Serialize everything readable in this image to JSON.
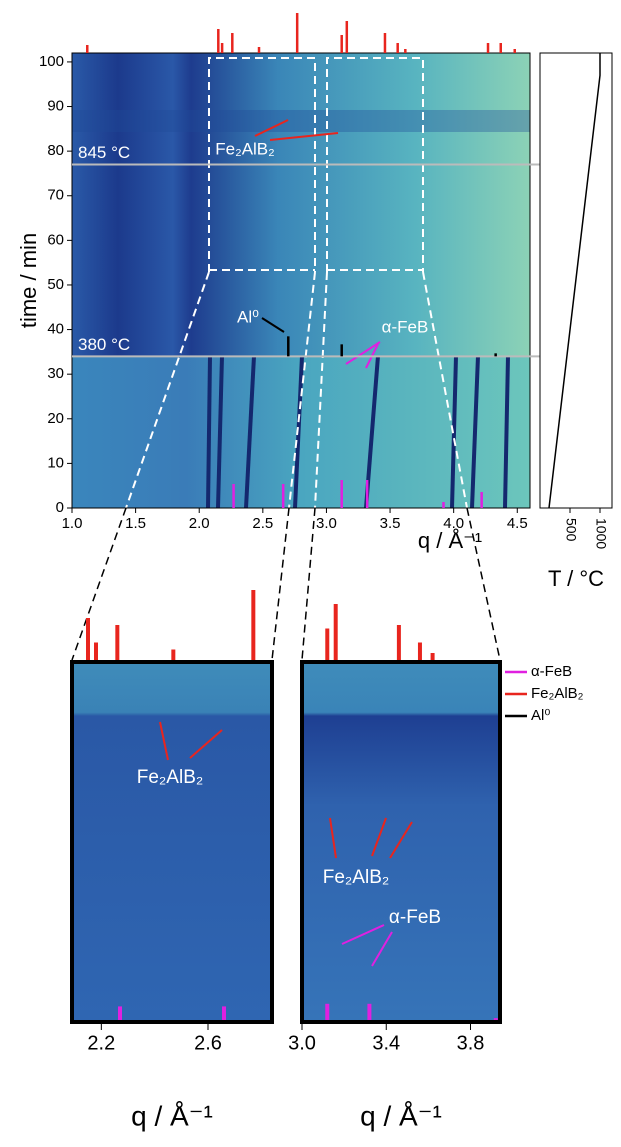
{
  "chart_data": [
    {
      "type": "heatmap",
      "ylabel": "time / min",
      "xlabel": "q / Å⁻¹",
      "xlim": [
        1.0,
        4.6
      ],
      "ylim": [
        0,
        102
      ],
      "xticks": [
        {
          "value": 1,
          "label": "1.0"
        },
        1.5,
        {
          "value": 2,
          "label": "2.0"
        },
        2.5,
        {
          "value": 3,
          "label": "3.0"
        },
        3.5,
        {
          "value": 4,
          "label": "4.0"
        },
        4.5
      ],
      "yticks": [
        0,
        10,
        20,
        30,
        40,
        50,
        60,
        70,
        80,
        90,
        100
      ],
      "hlines": [
        {
          "value": 77,
          "label": "845 °C"
        },
        {
          "value": 34,
          "label": "380 °C"
        }
      ],
      "series": [
        {
          "name": "α-FeB",
          "color": "#e020e0",
          "x": [
            2.27,
            2.66,
            3.12,
            3.32,
            3.92,
            4.22
          ],
          "values": [
            60,
            60,
            70,
            70,
            15,
            40
          ]
        },
        {
          "name": "Fe₂AlB₂",
          "color": "#e8251e",
          "x": [
            1.12,
            2.15,
            2.18,
            2.26,
            2.47,
            2.77,
            3.12,
            3.16,
            3.46,
            3.56,
            3.62,
            4.27,
            4.37,
            4.48
          ],
          "values": [
            20,
            60,
            25,
            50,
            15,
            100,
            45,
            80,
            50,
            25,
            10,
            25,
            25,
            10
          ]
        },
        {
          "name": "Al⁰",
          "color": "#000000",
          "x": [
            2.7,
            3.12,
            4.33
          ],
          "values": [
            100,
            60,
            15
          ]
        }
      ],
      "annotations": [
        "Fe₂AlB₂",
        "Al⁰",
        "α-FeB"
      ]
    },
    {
      "type": "line",
      "xlabel": "T / °C",
      "x": [
        150,
        1000,
        1000
      ],
      "values": [
        0,
        97,
        102
      ],
      "xlim": [
        0,
        1200
      ],
      "ylim": [
        0,
        102
      ],
      "xticks": [
        500,
        1000
      ],
      "color": "#000000"
    },
    {
      "type": "zoom",
      "xlabel": "q / Å⁻¹",
      "xlim": [
        2.09,
        2.84
      ],
      "xticks": [
        2.2,
        2.6
      ],
      "annotations": [
        "Fe₂AlB₂"
      ]
    },
    {
      "type": "zoom",
      "xlabel": "q / Å⁻¹",
      "xlim": [
        3.0,
        3.94
      ],
      "xticks": [
        {
          "value": 3,
          "label": "3.0"
        },
        3.4,
        3.8
      ],
      "annotations": [
        "Fe₂AlB₂",
        "α-FeB"
      ]
    }
  ]
}
